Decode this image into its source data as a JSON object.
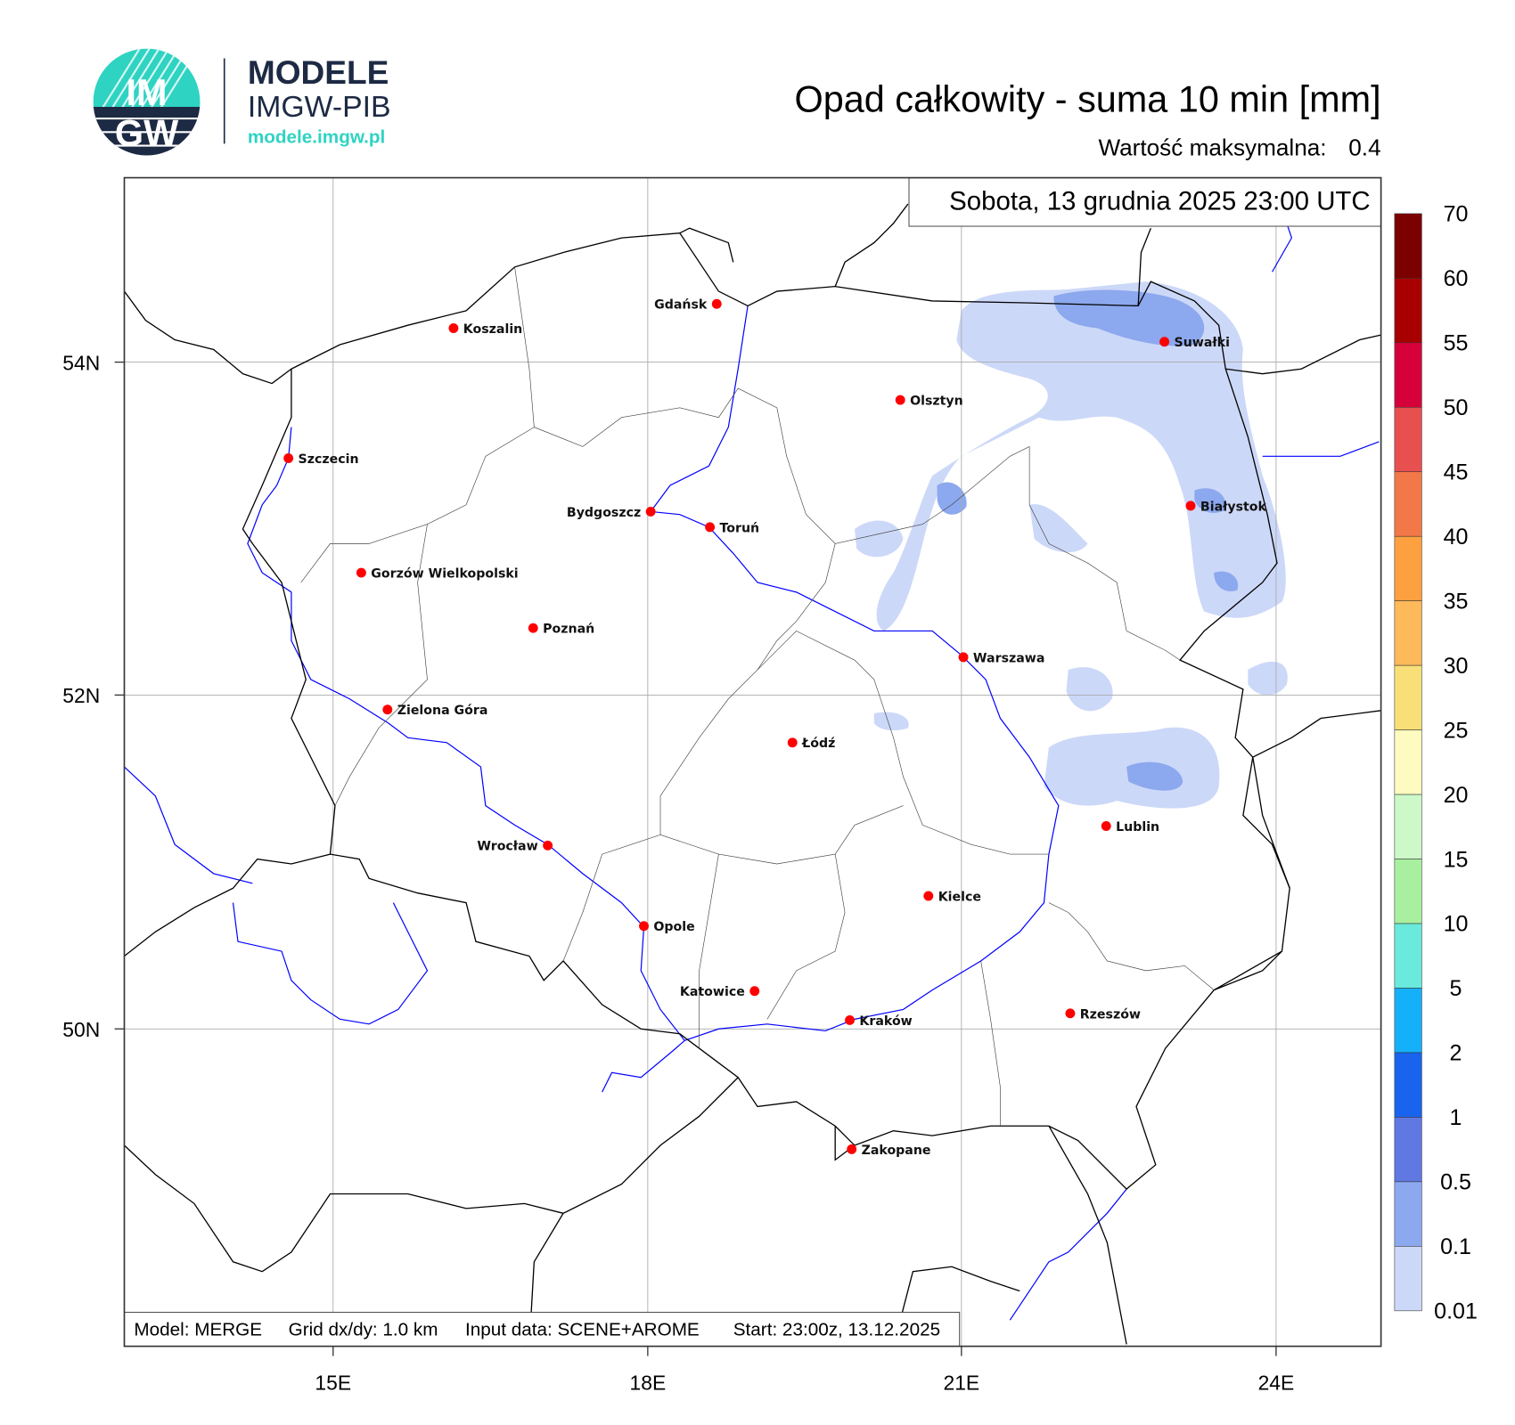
{
  "logo": {
    "brand_line1": "MODELE",
    "brand_line2": "IMGW-PIB",
    "url": "modele.imgw.pl",
    "emblem_text": "IMGW",
    "colors": {
      "navy": "#1d2a44",
      "teal": "#2fd3c2"
    }
  },
  "header": {
    "title": "Opad całkowity - suma 10 min [mm]",
    "max_label": "Wartość maksymalna:",
    "max_value": "0.4"
  },
  "map": {
    "date_label": "Sobota, 13 grudnia 2025 23:00 UTC",
    "lon_ticks": [
      "15E",
      "18E",
      "21E",
      "24E"
    ],
    "lat_ticks": [
      "54N",
      "52N",
      "50N"
    ],
    "footer": {
      "model": "Model: MERGE",
      "grid": "Grid dx/dy: 1.0 km",
      "input": "Input data: SCENE+AROME",
      "start": "Start: 23:00z, 13.12.2025"
    },
    "cities": [
      "Gdańsk",
      "Koszalin",
      "Suwałki",
      "Olsztyn",
      "Szczecin",
      "Białystok",
      "Bydgoszcz",
      "Toruń",
      "Gorzów Wielkopolski",
      "Poznań",
      "Warszawa",
      "Zielona Góra",
      "Łódź",
      "Lublin",
      "Wrocław",
      "Kielce",
      "Opole",
      "Katowice",
      "Kraków",
      "Rzeszów",
      "Zakopane"
    ],
    "colors": {
      "city_marker": "#ff0000",
      "river": "#0000ff",
      "border": "#000000"
    }
  },
  "colorbar": {
    "labels": [
      "70",
      "60",
      "55",
      "50",
      "45",
      "40",
      "35",
      "30",
      "25",
      "20",
      "15",
      "10",
      "5",
      "2",
      "1",
      "0.5",
      "0.1",
      "0.01"
    ],
    "colors": [
      "#7d0000",
      "#a80000",
      "#d6003a",
      "#e85050",
      "#f37848",
      "#fca040",
      "#fdb95a",
      "#f8df78",
      "#fdfbc0",
      "#cdf8c8",
      "#a8f0a0",
      "#6aeadc",
      "#15b0fa",
      "#1964ee",
      "#5f78e2",
      "#8ca8ee",
      "#ccd8f8"
    ]
  }
}
